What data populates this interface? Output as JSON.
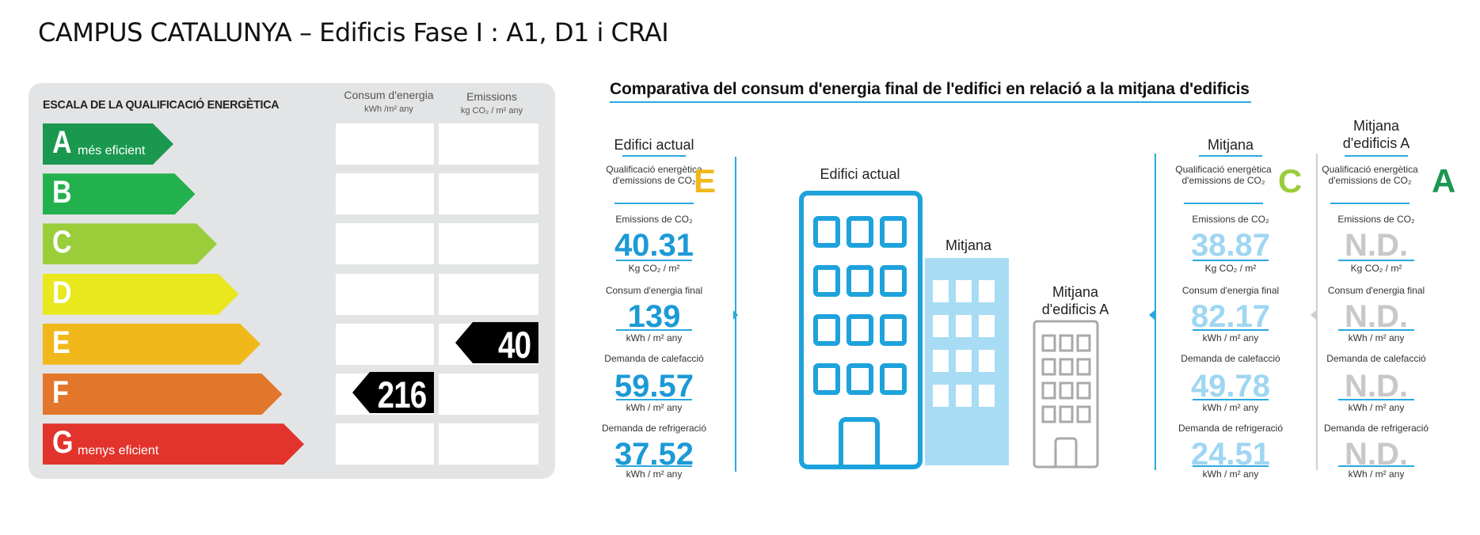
{
  "page_title": "CAMPUS CATALUNYA – Edificis Fase I : A1, D1 i CRAI",
  "energy_scale": {
    "title": "ESCALA DE LA QUALIFICACIÓ ENERGÈTICA",
    "col_consum": {
      "label": "Consum d'energia",
      "unit": "kWh /m² any"
    },
    "col_emissions": {
      "label": "Emissions",
      "unit": "kg CO₂ / m² any"
    },
    "ratings": [
      {
        "letter": "A",
        "text": "més eficient",
        "color": "#1a9850"
      },
      {
        "letter": "B",
        "text": "",
        "color": "#23b14d"
      },
      {
        "letter": "C",
        "text": "",
        "color": "#9acd3a"
      },
      {
        "letter": "D",
        "text": "",
        "color": "#e8e81c"
      },
      {
        "letter": "E",
        "text": "",
        "color": "#f1b81c"
      },
      {
        "letter": "F",
        "text": "",
        "color": "#e2762a"
      },
      {
        "letter": "G",
        "text": "menys eficient",
        "color": "#e2342c"
      }
    ],
    "consum_value": "216",
    "consum_rating": "F",
    "emissions_value": "40",
    "emissions_rating": "E"
  },
  "comparison": {
    "title": "Comparativa del consum d'energia final de l'edifici en relació a la mitjana d'edificis",
    "accent_color": "#29a8e0",
    "illustration": {
      "label_actual": "Edifici actual",
      "label_mitjana": "Mitjana",
      "label_mitjana_a": "Mitjana d'edificis A"
    },
    "columns": [
      {
        "header": "Edifici actual",
        "qual_label": "Qualificació energètica d'emissions de CO₂",
        "qual_letter": "E",
        "qual_color": "#f1b81c",
        "value_color": "#1c9ad6",
        "emissions_label": "Emissions de CO₂",
        "emissions_value": "40.31",
        "emissions_unit": "Kg CO₂ / m²",
        "consum_label": "Consum d'energia final",
        "consum_value": "139",
        "consum_unit": "kWh / m² any",
        "calef_label": "Demanda de calefacció",
        "calef_value": "59.57",
        "calef_unit": "kWh / m² any",
        "refrig_label": "Demanda de refrigeració",
        "refrig_value": "37.52",
        "refrig_unit": "kWh / m² any"
      },
      {
        "header": "Mitjana",
        "qual_label": "Qualificació energètica d'emissions de CO₂",
        "qual_letter": "C",
        "qual_color": "#9acd3a",
        "value_color": "#9fd6f2",
        "emissions_label": "Emissions de CO₂",
        "emissions_value": "38.87",
        "emissions_unit": "Kg CO₂ / m²",
        "consum_label": "Consum d'energia final",
        "consum_value": "82.17",
        "consum_unit": "kWh / m² any",
        "calef_label": "Demanda de calefacció",
        "calef_value": "49.78",
        "calef_unit": "kWh / m² any",
        "refrig_label": "Demanda de refrigeració",
        "refrig_value": "24.51",
        "refrig_unit": "kWh / m² any"
      },
      {
        "header": "Mitjana d'edificis A",
        "qual_label": "Qualificació energètica d'emissions de CO₂",
        "qual_letter": "A",
        "qual_color": "#1a9850",
        "value_color": "#c8c8c8",
        "emissions_label": "Emissions de CO₂",
        "emissions_value": "N.D.",
        "emissions_unit": "Kg CO₂ / m²",
        "consum_label": "Consum d'energia final",
        "consum_value": "N.D.",
        "consum_unit": "kWh / m² any",
        "calef_label": "Demanda de calefacció",
        "calef_value": "N.D.",
        "calef_unit": "kWh / m² any",
        "refrig_label": "Demanda de refrigeració",
        "refrig_value": "N.D.",
        "refrig_unit": "kWh / m² any"
      }
    ]
  }
}
